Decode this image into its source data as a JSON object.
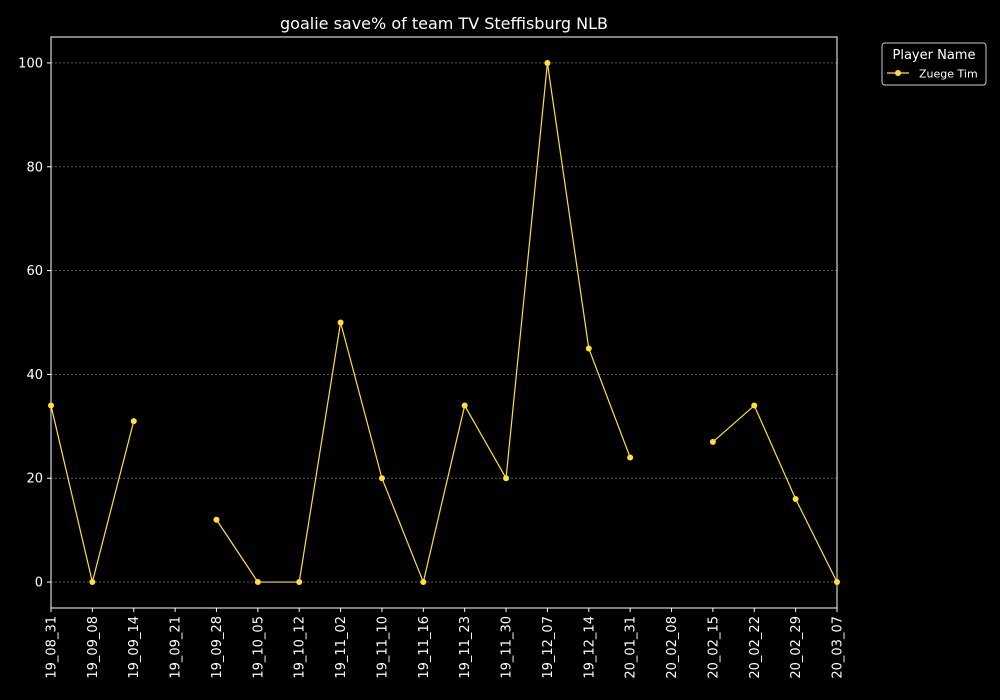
{
  "chart_data": {
    "type": "line",
    "title": "goalie save% of team TV Steffisburg NLB",
    "xlabel": "",
    "ylabel": "",
    "categories": [
      "19_08_31",
      "19_09_08",
      "19_09_14",
      "19_09_21",
      "19_09_28",
      "19_10_05",
      "19_10_12",
      "19_11_02",
      "19_11_10",
      "19_11_16",
      "19_11_23",
      "19_11_30",
      "19_12_07",
      "19_12_14",
      "20_01_31",
      "20_02_08",
      "20_02_15",
      "20_02_22",
      "20_02_29",
      "20_03_07"
    ],
    "yticks": [
      "0",
      "20",
      "40",
      "60",
      "80",
      "100"
    ],
    "ylim": [
      -5,
      105
    ],
    "grid": "y",
    "legend": {
      "title": "Player Name",
      "placement": "outside-top-right"
    },
    "series": [
      {
        "name": "Zuege Tim",
        "color": "#ffe135",
        "values": [
          34,
          0,
          31,
          null,
          12,
          0,
          0,
          50,
          20,
          0,
          34,
          20,
          100,
          45,
          24,
          null,
          27,
          34,
          16,
          0
        ]
      }
    ],
    "colors": {
      "background": "#000000",
      "axes": "#ffffff",
      "grid": "#888888"
    }
  }
}
